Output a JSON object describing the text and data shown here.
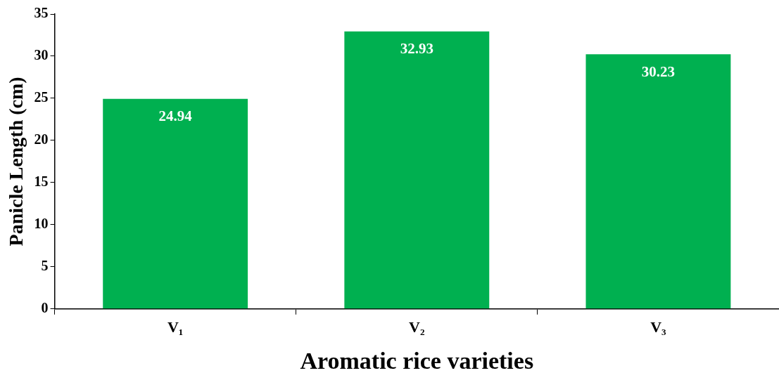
{
  "chart_data": {
    "type": "bar",
    "xlabel": "Aromatic rice varieties",
    "ylabel": "Panicle Length (cm)",
    "categories": [
      "V₁",
      "V₂",
      "V₃"
    ],
    "values": [
      24.94,
      32.93,
      30.23
    ],
    "color": "#00b050",
    "ylim": [
      0,
      35
    ],
    "yticks": [
      0,
      5,
      10,
      15,
      20,
      25,
      30,
      35
    ],
    "grid": false,
    "legend": false,
    "data_labels": true
  }
}
